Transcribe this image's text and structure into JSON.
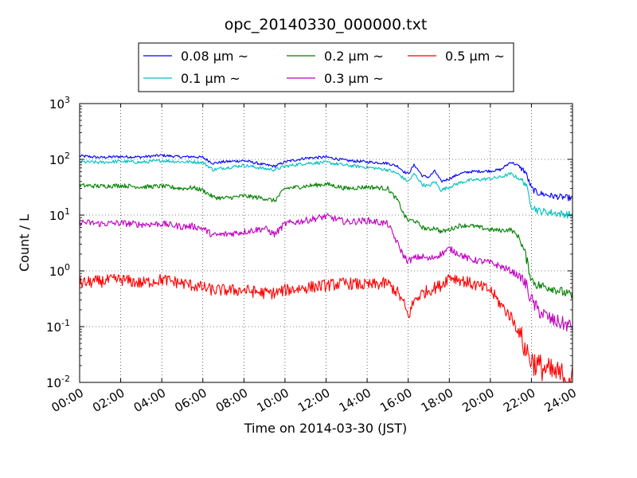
{
  "chart_data": {
    "type": "line",
    "title": "opc_20140330_000000.txt",
    "xlabel": "Time on 2014-03-30 (JST)",
    "ylabel": "Count / L",
    "xlim": [
      "00:00",
      "24:00"
    ],
    "ylim": [
      0.01,
      1000
    ],
    "yscale": "log",
    "grid": true,
    "legend_position": "top",
    "x_ticks": [
      "00:00",
      "02:00",
      "04:00",
      "06:00",
      "08:00",
      "10:00",
      "12:00",
      "14:00",
      "16:00",
      "18:00",
      "20:00",
      "22:00",
      "24:00"
    ],
    "y_ticks": [
      {
        "value": 0.01,
        "base": "10",
        "exp": "-2"
      },
      {
        "value": 0.1,
        "base": "10",
        "exp": "-1"
      },
      {
        "value": 1,
        "base": "10",
        "exp": "0"
      },
      {
        "value": 10,
        "base": "10",
        "exp": "1"
      },
      {
        "value": 100,
        "base": "10",
        "exp": "2"
      },
      {
        "value": 1000,
        "base": "10",
        "exp": "3"
      }
    ],
    "x_hours": [
      0,
      1,
      2,
      3,
      4,
      5,
      5.5,
      6,
      6.5,
      7,
      8,
      9,
      9.5,
      10,
      11,
      12,
      13,
      14,
      15,
      15.5,
      15.8,
      16,
      16.3,
      16.7,
      17,
      17.3,
      17.6,
      18,
      18.5,
      19,
      20,
      20.5,
      21,
      21.4,
      21.7,
      22,
      22.3,
      23,
      24
    ],
    "series": [
      {
        "name": "0.08 μm ~",
        "color": "#0000ff",
        "values": [
          115,
          108,
          112,
          110,
          118,
          110,
          112,
          108,
          85,
          90,
          95,
          80,
          75,
          90,
          105,
          110,
          95,
          90,
          85,
          75,
          60,
          55,
          80,
          50,
          48,
          62,
          40,
          45,
          55,
          60,
          62,
          65,
          90,
          75,
          60,
          30,
          25,
          22,
          20
        ]
      },
      {
        "name": "0.1 μm ~",
        "color": "#00c0c0",
        "values": [
          90,
          88,
          92,
          88,
          95,
          90,
          90,
          88,
          65,
          70,
          78,
          68,
          65,
          75,
          85,
          88,
          78,
          72,
          65,
          55,
          45,
          40,
          55,
          35,
          33,
          40,
          28,
          32,
          38,
          42,
          45,
          48,
          55,
          45,
          38,
          15,
          12,
          11,
          10
        ]
      },
      {
        "name": "0.2 μm ~",
        "color": "#008000",
        "values": [
          34,
          33,
          34,
          32,
          33,
          30,
          31,
          28,
          21,
          20,
          22,
          20,
          18,
          30,
          33,
          36,
          30,
          32,
          30,
          18,
          10,
          8,
          8,
          6,
          5.5,
          6,
          5,
          5.5,
          6.5,
          6.5,
          5.5,
          5.3,
          5.5,
          4,
          2,
          0.7,
          0.55,
          0.5,
          0.35
        ]
      },
      {
        "name": "0.3 μm ~",
        "color": "#c000c0",
        "values": [
          7.5,
          7,
          7.2,
          6.8,
          7,
          6.2,
          6.3,
          5.8,
          4.3,
          4.5,
          5,
          5.8,
          4.5,
          7,
          8,
          9.5,
          7.5,
          8,
          7,
          3,
          1.8,
          1.5,
          1.7,
          1.8,
          1.6,
          1.8,
          2,
          2.5,
          2,
          1.6,
          1.4,
          1.2,
          1,
          0.8,
          0.6,
          0.3,
          0.2,
          0.13,
          0.1
        ]
      },
      {
        "name": "0.5 μm ~",
        "color": "#ff0000",
        "values": [
          0.6,
          0.65,
          0.7,
          0.6,
          0.7,
          0.6,
          0.55,
          0.5,
          0.45,
          0.45,
          0.45,
          0.4,
          0.4,
          0.45,
          0.5,
          0.55,
          0.6,
          0.55,
          0.6,
          0.4,
          0.25,
          0.15,
          0.3,
          0.4,
          0.45,
          0.5,
          0.55,
          0.8,
          0.7,
          0.6,
          0.45,
          0.25,
          0.15,
          0.08,
          0.04,
          0.025,
          0.02,
          0.015,
          0.012
        ]
      }
    ]
  }
}
